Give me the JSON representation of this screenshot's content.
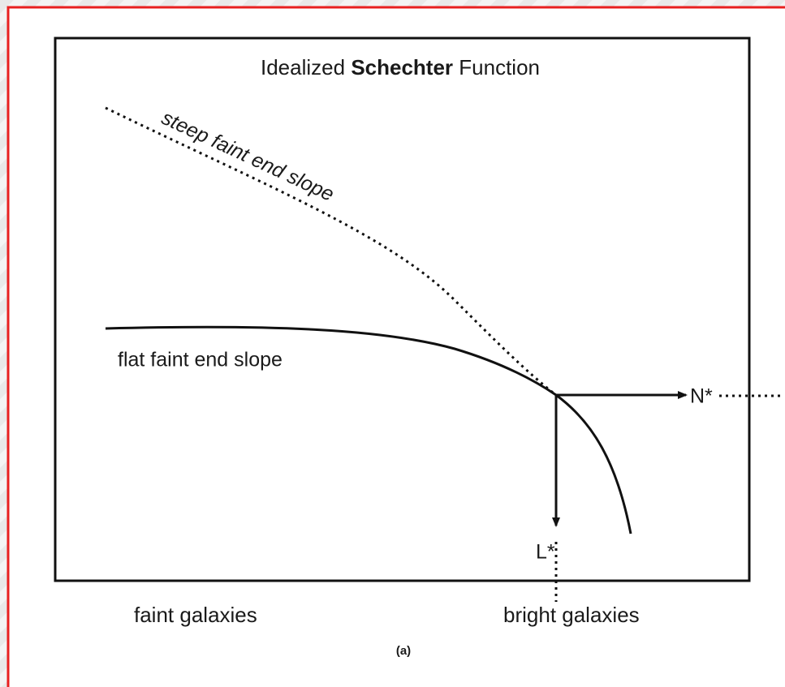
{
  "title": {
    "parts": [
      "Idealized ",
      "Schechter",
      " Function"
    ]
  },
  "curves": {
    "steep": "steep faint end slope",
    "flat": "flat faint end slope"
  },
  "markers": {
    "n_star": "N*",
    "l_star": "L*"
  },
  "axis": {
    "left": "faint galaxies",
    "right": "bright galaxies"
  },
  "caption": "(a)"
}
